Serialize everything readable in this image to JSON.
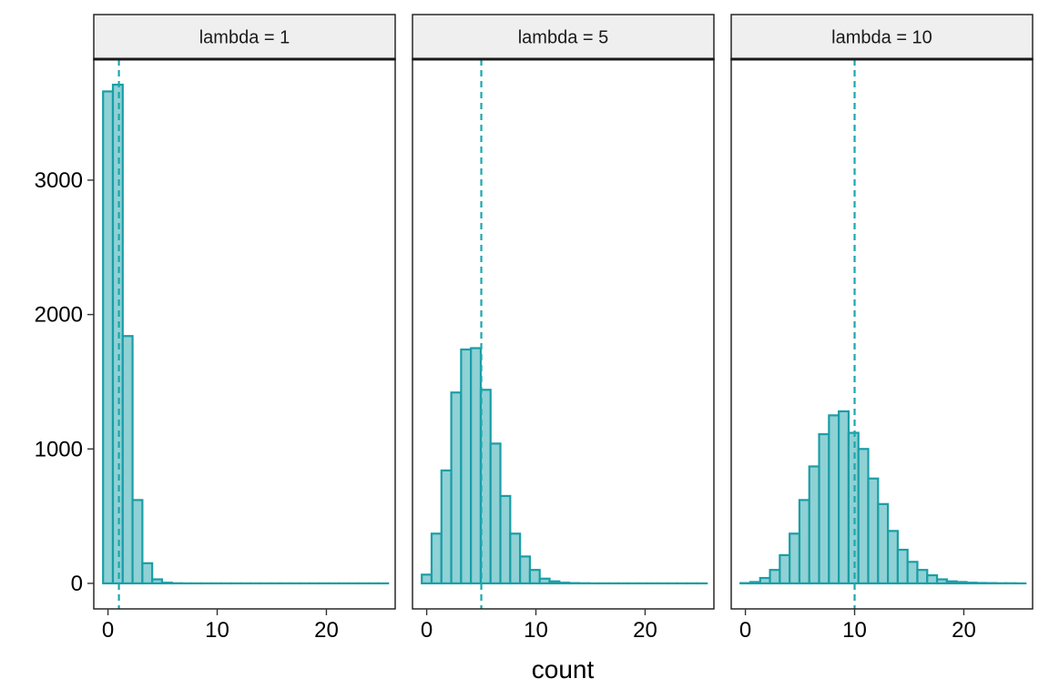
{
  "chart_data": {
    "type": "bar",
    "layout": "facet_wrap",
    "xlabel": "count",
    "ylabel": "",
    "xlim": [
      -1.3,
      26.3
    ],
    "ylim": [
      -190,
      3900
    ],
    "x_ticks": [
      0,
      10,
      20
    ],
    "y_ticks": [
      0,
      1000,
      2000,
      3000
    ],
    "bin_width": 0.9,
    "bin_start": -0.45,
    "bin_count": 29,
    "colors": {
      "bar_fill": "#8fd1d5",
      "bar_stroke": "#1a9ea6",
      "mean_line": "#1aa7ae",
      "strip_fill": "#efefef",
      "panel_border": "#1a1a1a"
    },
    "panels": [
      {
        "strip": "lambda = 1",
        "mean": 1,
        "values": [
          3660,
          3710,
          1840,
          620,
          150,
          30,
          5,
          1,
          0,
          0,
          0,
          0,
          0,
          0,
          0,
          0,
          0,
          0,
          0,
          0,
          0,
          0,
          0,
          0,
          0,
          0,
          0,
          0,
          0
        ]
      },
      {
        "strip": "lambda = 5",
        "mean": 5,
        "values": [
          65,
          370,
          840,
          1420,
          1740,
          1750,
          1440,
          1040,
          650,
          370,
          200,
          100,
          35,
          15,
          5,
          2,
          1,
          0,
          0,
          0,
          0,
          0,
          0,
          0,
          0,
          0,
          0,
          0,
          0
        ]
      },
      {
        "strip": "lambda = 10",
        "mean": 10,
        "values": [
          2,
          10,
          40,
          100,
          210,
          370,
          620,
          870,
          1110,
          1250,
          1280,
          1120,
          1000,
          780,
          590,
          390,
          250,
          160,
          100,
          60,
          30,
          15,
          10,
          5,
          3,
          2,
          1,
          1,
          0
        ]
      }
    ]
  }
}
